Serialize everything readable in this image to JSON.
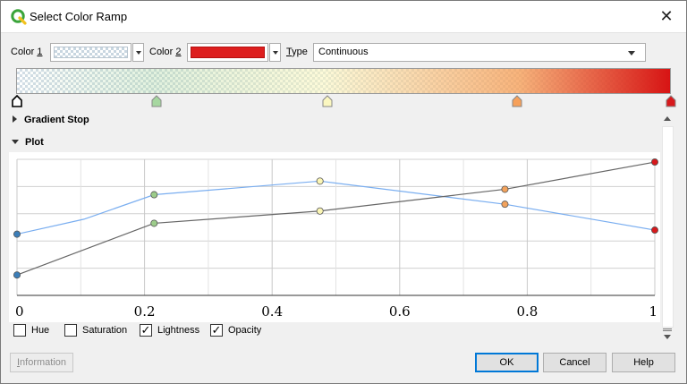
{
  "window": {
    "title": "Select Color Ramp",
    "close_glyph": "✕",
    "app_icon": "qgis-icon"
  },
  "controls": {
    "color1_label": "Color 1",
    "color2_label": "Color 2",
    "type_label": "Type",
    "type_value": "Continuous",
    "color1_value": "transparent-checker",
    "color2_value": "#dd1e1e"
  },
  "stops": [
    {
      "position": 0.0,
      "color": "#ffffff"
    },
    {
      "position": 0.215,
      "color": "#a6d7a0"
    },
    {
      "position": 0.475,
      "color": "#fbf7c0"
    },
    {
      "position": 0.765,
      "color": "#f6a05a"
    },
    {
      "position": 1.0,
      "color": "#d7191c"
    }
  ],
  "sections": {
    "gradient_stop": "Gradient Stop",
    "plot": "Plot"
  },
  "chart_data": {
    "type": "line",
    "xlim": [
      0,
      1
    ],
    "ylim": [
      0,
      1
    ],
    "x_ticks": [
      "0",
      "0.2",
      "0.4",
      "0.6",
      "0.8",
      "1"
    ],
    "grid": true,
    "series": [
      {
        "color": "#7aaef0",
        "points": [
          [
            0,
            0.45
          ],
          [
            0.105,
            0.56
          ],
          [
            0.215,
            0.74
          ],
          [
            0.475,
            0.84
          ],
          [
            0.765,
            0.67
          ],
          [
            1.0,
            0.48
          ]
        ]
      },
      {
        "color": "#666666",
        "points": [
          [
            0,
            0.15
          ],
          [
            0.215,
            0.53
          ],
          [
            0.475,
            0.62
          ],
          [
            0.765,
            0.78
          ],
          [
            1.0,
            0.98
          ]
        ]
      }
    ],
    "marker_colors": [
      "#3c7eb8",
      "#9ccc8a",
      "#fbf6b5",
      "#f2a25c",
      "#d7191c"
    ]
  },
  "checkboxes": [
    {
      "label": "Hue",
      "checked": false
    },
    {
      "label": "Saturation",
      "checked": false
    },
    {
      "label": "Lightness",
      "checked": true
    },
    {
      "label": "Opacity",
      "checked": true
    }
  ],
  "buttons": {
    "information": "Information",
    "ok": "OK",
    "cancel": "Cancel",
    "help": "Help"
  }
}
